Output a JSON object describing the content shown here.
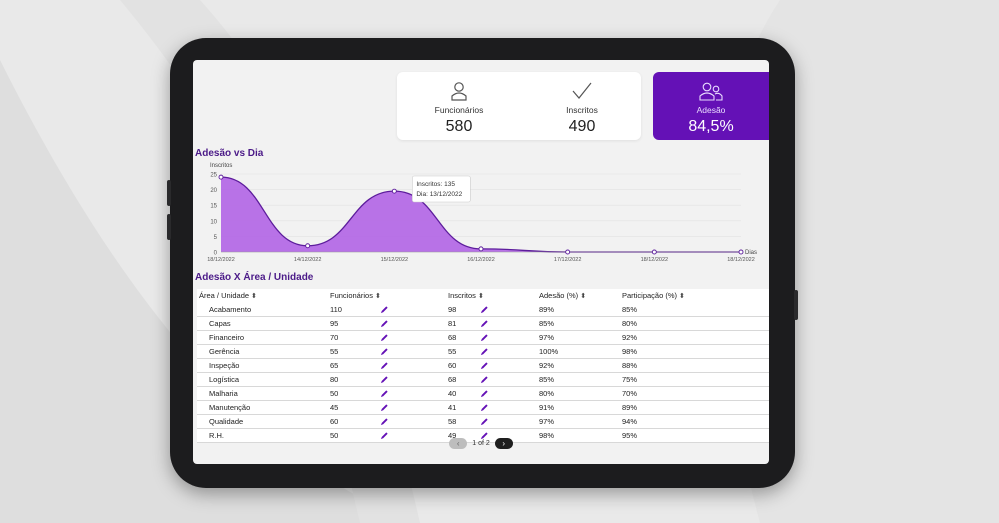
{
  "kpis": [
    {
      "label": "Funcionários",
      "value": "580",
      "icon": "user-icon"
    },
    {
      "label": "Inscritos",
      "value": "490",
      "icon": "check-icon"
    },
    {
      "label": "Adesão",
      "value": "84,5%",
      "icon": "users-icon"
    }
  ],
  "colors": {
    "accent": "#6411b6",
    "area": "#b46ae6",
    "line": "#5d1d9c"
  },
  "chart_title": "Adesão vs Dia",
  "chart_data": {
    "type": "area",
    "title": "Adesão vs Dia",
    "ylabel": "Inscritos",
    "xlabel": "Dias",
    "ylim": [
      0,
      25
    ],
    "yticks": [
      "25",
      "20",
      "15",
      "10",
      "5",
      "0"
    ],
    "x": [
      "18/12/2022",
      "14/12/2022",
      "15/12/2022",
      "16/12/2022",
      "17/12/2022",
      "18/12/2022",
      "18/12/2022"
    ],
    "values": [
      24,
      2,
      19.5,
      1,
      0,
      0,
      0
    ],
    "grid": true,
    "tooltip": {
      "line1": "Inscritos: 135",
      "line2": "Dia: 13/12/2022"
    }
  },
  "table": {
    "title": "Adesão X Área / Unidade",
    "columns": [
      "Área / Unidade",
      "Funcionários",
      "Inscritos",
      "Adesão (%)",
      "Participação (%)"
    ],
    "sort_glyph": "⬍",
    "rows": [
      [
        "Acabamento",
        "110",
        "98",
        "89%",
        "85%"
      ],
      [
        "Capas",
        "95",
        "81",
        "85%",
        "80%"
      ],
      [
        "Financeiro",
        "70",
        "68",
        "97%",
        "92%"
      ],
      [
        "Gerência",
        "55",
        "55",
        "100%",
        "98%"
      ],
      [
        "Inspeção",
        "65",
        "60",
        "92%",
        "88%"
      ],
      [
        "Logística",
        "80",
        "68",
        "85%",
        "75%"
      ],
      [
        "Malharia",
        "50",
        "40",
        "80%",
        "70%"
      ],
      [
        "Manutenção",
        "45",
        "41",
        "91%",
        "89%"
      ],
      [
        "Qualidade",
        "60",
        "58",
        "97%",
        "94%"
      ],
      [
        "R.H.",
        "50",
        "49",
        "98%",
        "95%"
      ]
    ]
  },
  "pagination": {
    "label": "1 of 2",
    "prev": "‹",
    "next": "›"
  }
}
